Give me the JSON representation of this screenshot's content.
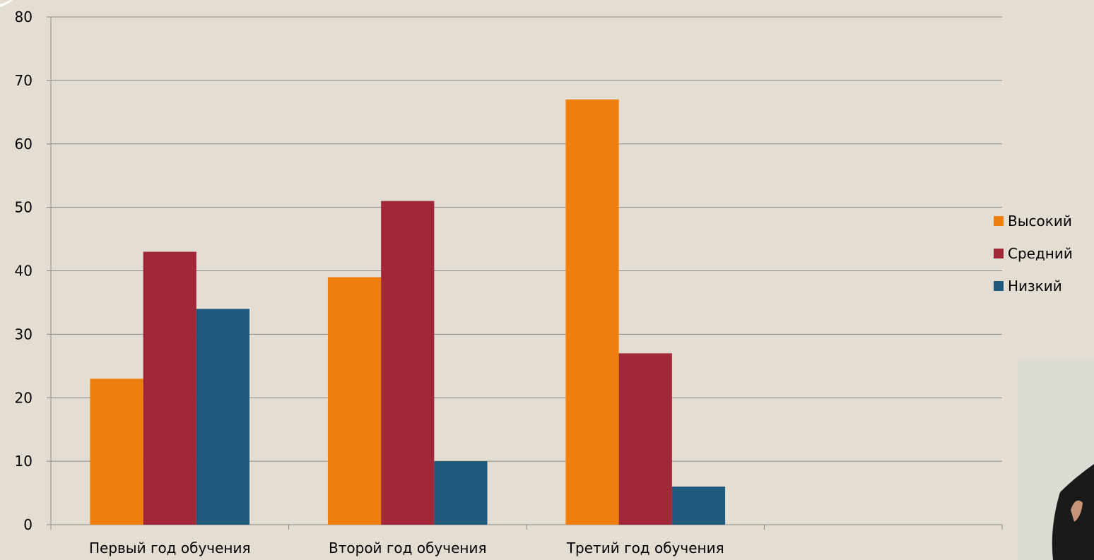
{
  "chart_data": {
    "type": "bar",
    "categories": [
      "Первый год обучения",
      "Второй год обучения",
      "Третий год обучения",
      ""
    ],
    "series": [
      {
        "name": "Высокий",
        "color": "#ef7f0c",
        "values": [
          23,
          39,
          67,
          null
        ]
      },
      {
        "name": "Средний",
        "color": "#a02838",
        "values": [
          43,
          51,
          27,
          null
        ]
      },
      {
        "name": "Низкий",
        "color": "#1e5a7c",
        "values": [
          34,
          10,
          6,
          null
        ]
      }
    ],
    "ylim": [
      0,
      80
    ],
    "yticks": [
      0,
      10,
      20,
      30,
      40,
      50,
      60,
      70,
      80
    ],
    "grid": true,
    "legend_position": "right"
  }
}
